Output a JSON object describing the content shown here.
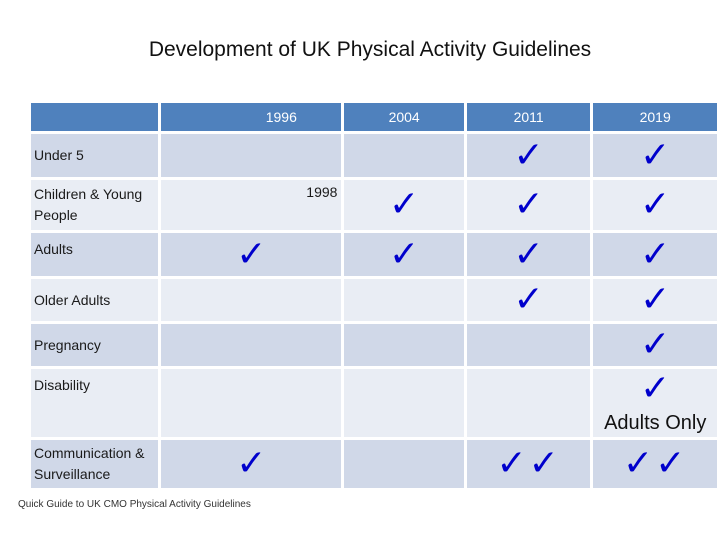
{
  "title": "Development of UK Physical Activity Guidelines",
  "columns": [
    "",
    "1996",
    "2004",
    "2011",
    "2019"
  ],
  "rows": [
    {
      "label": "Under 5",
      "cells": [
        "",
        "",
        "✓",
        "✓"
      ]
    },
    {
      "label": "Children & Young People",
      "cells": [
        "",
        "✓",
        "✓",
        "✓"
      ],
      "note": "1998"
    },
    {
      "label": "Adults",
      "cells": [
        "✓",
        "✓",
        "✓",
        "✓"
      ]
    },
    {
      "label": "Older Adults",
      "cells": [
        "",
        "",
        "✓",
        "✓"
      ]
    },
    {
      "label": "Pregnancy",
      "cells": [
        "",
        "",
        "",
        "✓"
      ]
    },
    {
      "label": "Disability",
      "cells": [
        "",
        "",
        "",
        "✓"
      ],
      "extra": "Adults Only"
    },
    {
      "label": "Communication & Surveillance",
      "cells": [
        "✓",
        "",
        "✓✓",
        "✓✓"
      ]
    }
  ],
  "footer": "Quick Guide to UK CMO Physical Activity Guidelines",
  "colors": {
    "header": "#4f81bd",
    "row_dark": "#d0d8e8",
    "row_light": "#e9edf4",
    "check": "#0000cc"
  }
}
